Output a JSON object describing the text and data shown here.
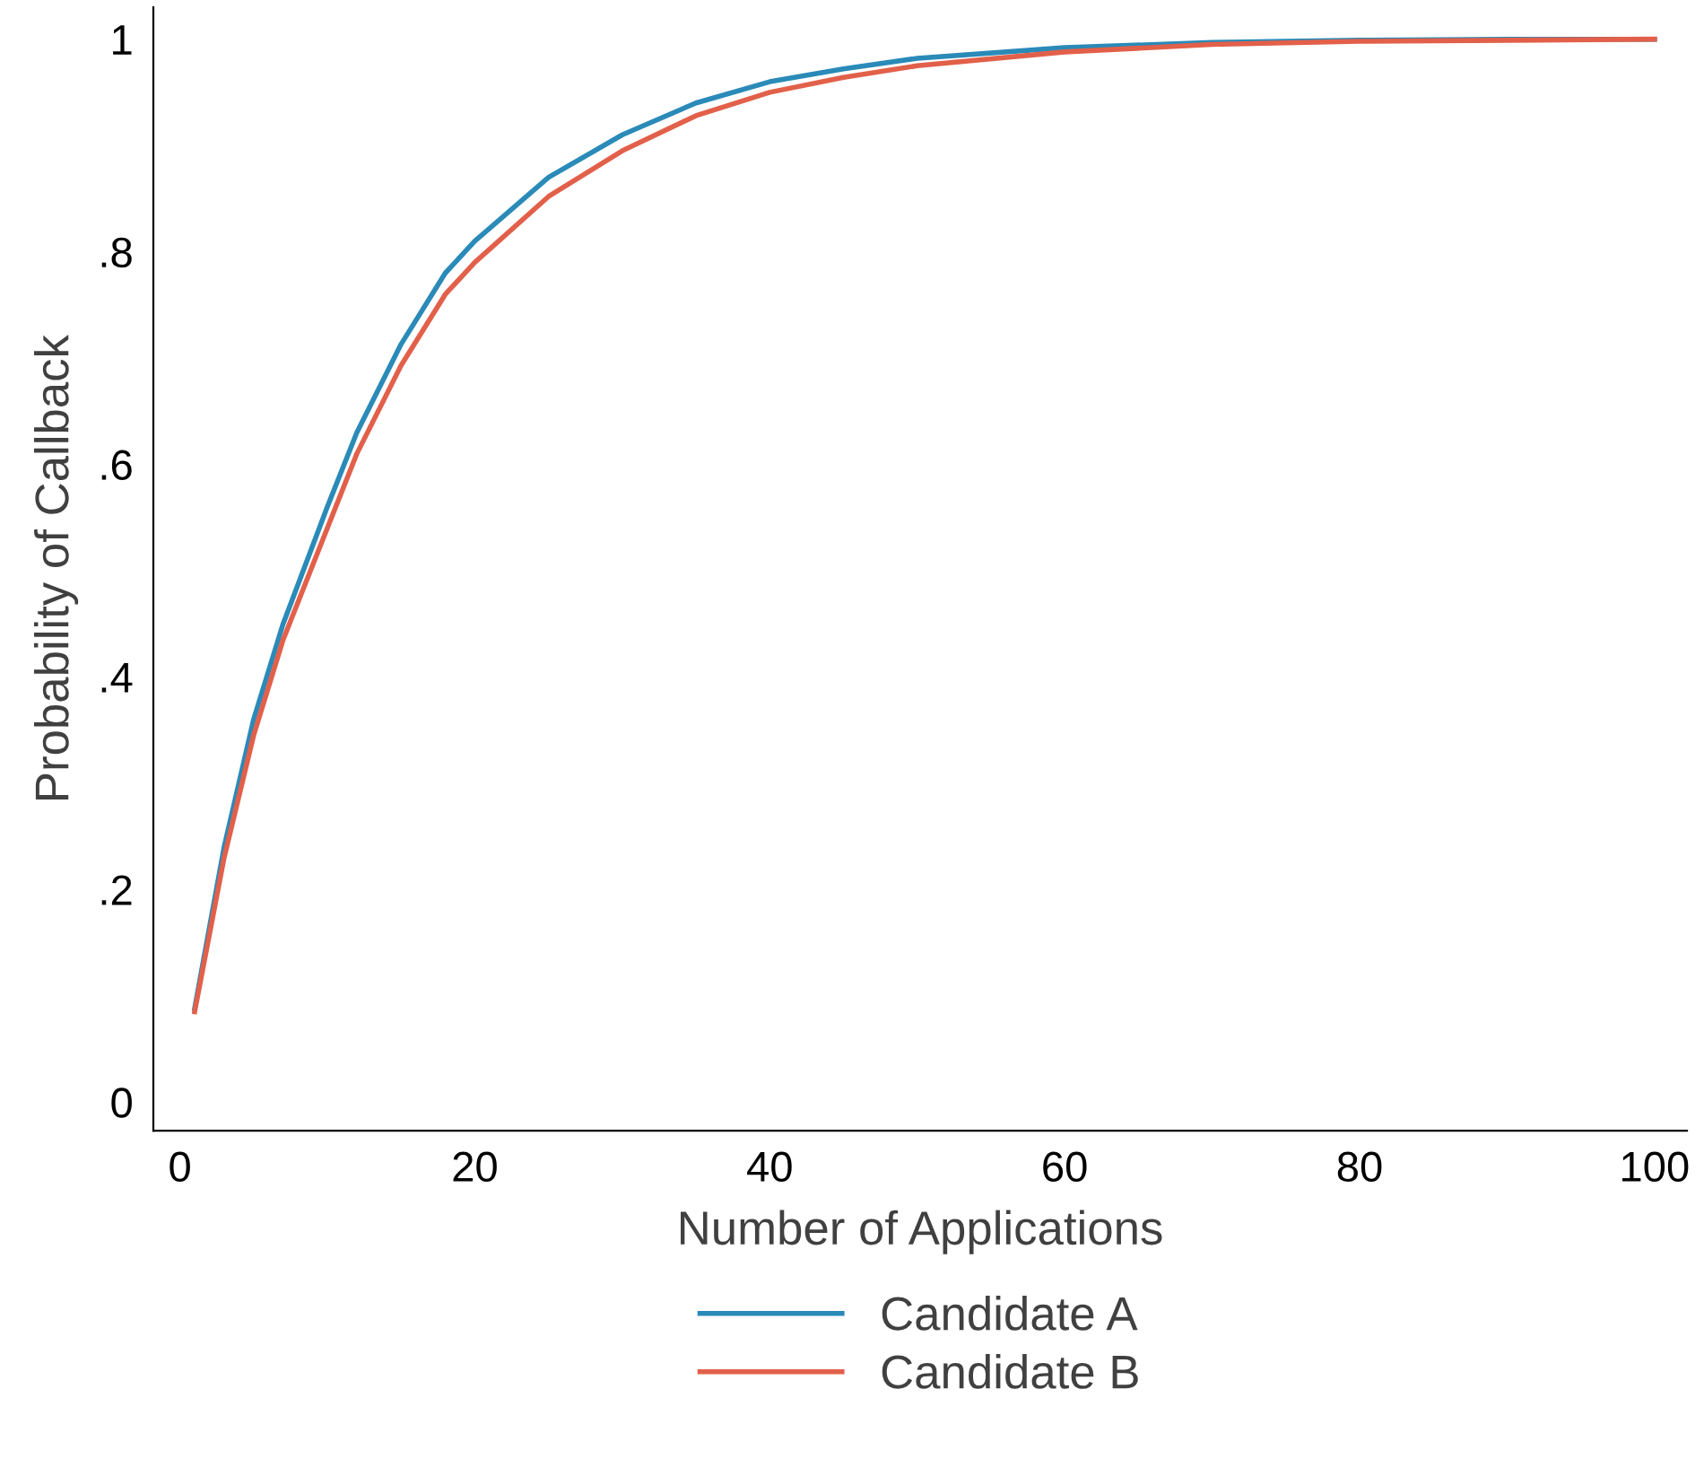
{
  "chart_data": {
    "type": "line",
    "xlabel": "Number of Applications",
    "ylabel": "Probability of Callback",
    "xlim": [
      -1.8,
      102.2
    ],
    "xticks": [
      0,
      20,
      40,
      60,
      80,
      100
    ],
    "ylim": [
      -0.027,
      1.03
    ],
    "yticks": [
      {
        "value": 0,
        "label": "0"
      },
      {
        "value": 0.2,
        "label": ".2"
      },
      {
        "value": 0.4,
        "label": ".4"
      },
      {
        "value": 0.6,
        "label": ".6"
      },
      {
        "value": 0.8,
        "label": ".8"
      },
      {
        "value": 1,
        "label": "1"
      }
    ],
    "grid": false,
    "legend": "bottom",
    "marker": "none",
    "line_style": "solid",
    "x": [
      1,
      3,
      5,
      7,
      10,
      12,
      15,
      18,
      20,
      25,
      30,
      35,
      40,
      45,
      50,
      60,
      70,
      80,
      90,
      100
    ],
    "series": [
      {
        "name": "Candidate A",
        "color": "#2a8ab8",
        "values": [
          0.088,
          0.24,
          0.36,
          0.45,
          0.56,
          0.63,
          0.713,
          0.78,
          0.81,
          0.87,
          0.91,
          0.94,
          0.96,
          0.972,
          0.982,
          0.992,
          0.997,
          0.999,
          1.0,
          1.0
        ]
      },
      {
        "name": "Candidate B",
        "color": "#e2604a",
        "values": [
          0.085,
          0.23,
          0.345,
          0.435,
          0.54,
          0.61,
          0.693,
          0.76,
          0.79,
          0.852,
          0.895,
          0.928,
          0.95,
          0.964,
          0.975,
          0.988,
          0.995,
          0.998,
          0.999,
          1.0
        ]
      }
    ]
  }
}
